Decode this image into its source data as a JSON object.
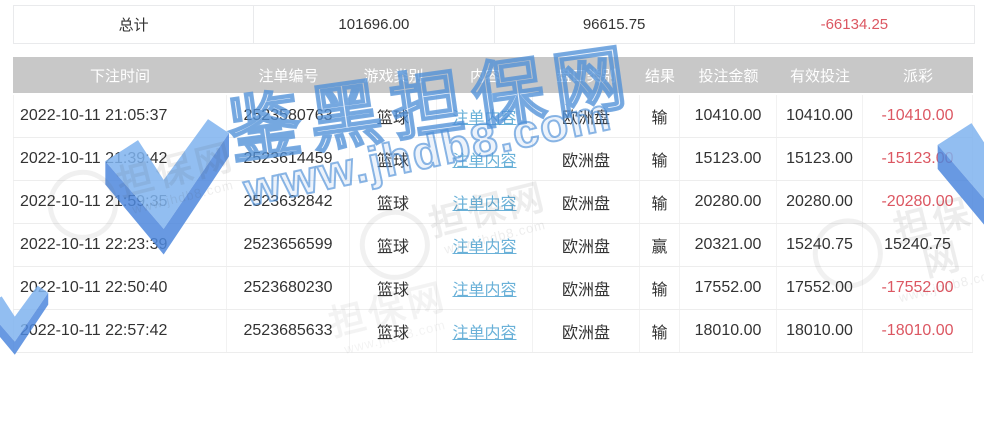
{
  "summary": {
    "label": "总计",
    "bet_amount_total": "101696.00",
    "valid_bet_total": "96615.75",
    "payout_total": "-66134.25"
  },
  "table": {
    "columns": [
      "下注时间",
      "注单编号",
      "游戏类别",
      "内容",
      "盘口类别",
      "结果",
      "投注金额",
      "有效投注",
      "派彩"
    ],
    "rows": [
      {
        "time": "2022-10-11 21:05:37",
        "bet_id": "2523580763",
        "game": "篮球",
        "content": "注单内容",
        "market": "欧洲盘",
        "result": "输",
        "amount": "10410.00",
        "valid": "10410.00",
        "payout": "-10410.00"
      },
      {
        "time": "2022-10-11 21:39:42",
        "bet_id": "2523614459",
        "game": "篮球",
        "content": "注单内容",
        "market": "欧洲盘",
        "result": "输",
        "amount": "15123.00",
        "valid": "15123.00",
        "payout": "-15123.00"
      },
      {
        "time": "2022-10-11 21:59:35",
        "bet_id": "2523632842",
        "game": "篮球",
        "content": "注单内容",
        "market": "欧洲盘",
        "result": "输",
        "amount": "20280.00",
        "valid": "20280.00",
        "payout": "-20280.00"
      },
      {
        "time": "2022-10-11 22:23:39",
        "bet_id": "2523656599",
        "game": "篮球",
        "content": "注单内容",
        "market": "欧洲盘",
        "result": "赢",
        "amount": "20321.00",
        "valid": "15240.75",
        "payout": "15240.75"
      },
      {
        "time": "2022-10-11 22:50:40",
        "bet_id": "2523680230",
        "game": "篮球",
        "content": "注单内容",
        "market": "欧洲盘",
        "result": "输",
        "amount": "17552.00",
        "valid": "17552.00",
        "payout": "-17552.00"
      },
      {
        "time": "2022-10-11 22:57:42",
        "bet_id": "2523685633",
        "game": "篮球",
        "content": "注单内容",
        "market": "欧洲盘",
        "result": "输",
        "amount": "18010.00",
        "valid": "18010.00",
        "payout": "-18010.00"
      }
    ]
  },
  "watermark": {
    "brand": "鉴黑担保网",
    "site": "www.jhdb8.com",
    "stamp_text": "担保网",
    "stamp_site": "www.jhdb8.com"
  },
  "colors": {
    "negative": "#dc5762",
    "link": "#6ab1d8",
    "header_bg": "#c8c8c8"
  }
}
